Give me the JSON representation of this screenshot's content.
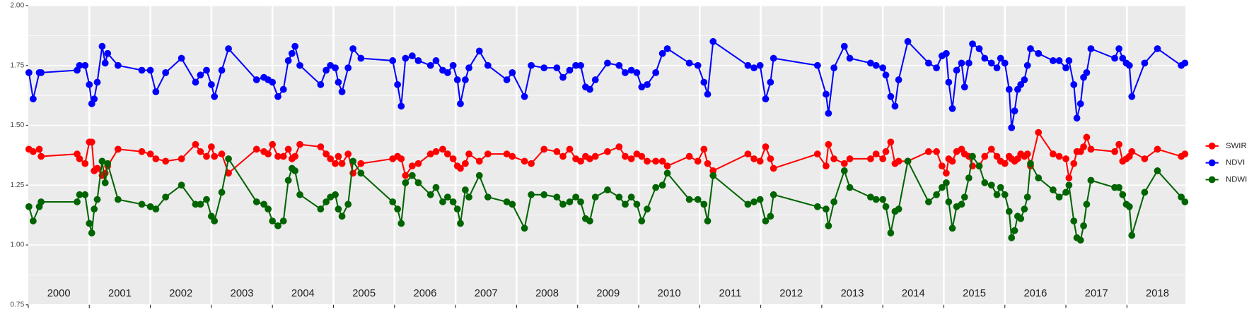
{
  "chart_data": {
    "type": "line",
    "x": [
      2000.01,
      2000.08,
      2000.18,
      2000.21,
      2000.8,
      2000.84,
      2000.93,
      2001.0,
      2001.04,
      2001.08,
      2001.13,
      2001.21,
      2001.26,
      2001.3,
      2001.47,
      2001.86,
      2002.0,
      2002.09,
      2002.25,
      2002.51,
      2002.74,
      2002.82,
      2002.92,
      2003.0,
      2003.05,
      2003.17,
      2003.28,
      2003.74,
      2003.86,
      2003.93,
      2004.0,
      2004.09,
      2004.18,
      2004.26,
      2004.32,
      2004.37,
      2004.45,
      2004.79,
      2004.88,
      2004.95,
      2005.03,
      2005.08,
      2005.14,
      2005.24,
      2005.32,
      2005.45,
      2005.97,
      2006.05,
      2006.11,
      2006.18,
      2006.29,
      2006.39,
      2006.59,
      2006.68,
      2006.79,
      2006.87,
      2006.96,
      2007.03,
      2007.08,
      2007.16,
      2007.22,
      2007.39,
      2007.53,
      2007.84,
      2007.93,
      2008.13,
      2008.24,
      2008.45,
      2008.66,
      2008.76,
      2008.87,
      2008.97,
      2009.05,
      2009.13,
      2009.2,
      2009.29,
      2009.49,
      2009.68,
      2009.78,
      2009.88,
      2009.97,
      2010.05,
      2010.14,
      2010.28,
      2010.39,
      2010.47,
      2010.83,
      2010.97,
      2011.07,
      2011.13,
      2011.22,
      2011.79,
      2011.89,
      2011.99,
      2012.08,
      2012.16,
      2012.21,
      2012.93,
      2013.07,
      2013.11,
      2013.2,
      2013.37,
      2013.46,
      2013.8,
      2013.89,
      2014.0,
      2014.05,
      2014.13,
      2014.2,
      2014.26,
      2014.41,
      2014.75,
      2014.88,
      2014.97,
      2015.04,
      2015.08,
      2015.14,
      2015.21,
      2015.29,
      2015.34,
      2015.41,
      2015.47,
      2015.58,
      2015.67,
      2015.78,
      2015.87,
      2015.93,
      2016.0,
      2016.07,
      2016.11,
      2016.16,
      2016.21,
      2016.26,
      2016.32,
      2016.37,
      2016.42,
      2016.55,
      2016.79,
      2016.89,
      2017.0,
      2017.05,
      2017.13,
      2017.18,
      2017.24,
      2017.29,
      2017.34,
      2017.41,
      2017.8,
      2017.87,
      2017.93,
      2017.99,
      2018.04,
      2018.08,
      2018.29,
      2018.5,
      2018.89,
      2018.95
    ],
    "series": [
      {
        "name": "SWIR",
        "color": "#ff0000",
        "values": [
          1.4,
          1.39,
          1.4,
          1.37,
          1.38,
          1.36,
          1.34,
          1.43,
          1.43,
          1.31,
          1.32,
          1.29,
          1.3,
          1.33,
          1.4,
          1.39,
          1.38,
          1.36,
          1.35,
          1.36,
          1.42,
          1.39,
          1.37,
          1.41,
          1.37,
          1.38,
          1.3,
          1.4,
          1.39,
          1.38,
          1.42,
          1.37,
          1.37,
          1.4,
          1.36,
          1.37,
          1.42,
          1.41,
          1.38,
          1.36,
          1.34,
          1.37,
          1.34,
          1.38,
          1.3,
          1.34,
          1.36,
          1.37,
          1.36,
          1.29,
          1.33,
          1.34,
          1.38,
          1.39,
          1.4,
          1.38,
          1.36,
          1.33,
          1.32,
          1.34,
          1.38,
          1.35,
          1.38,
          1.38,
          1.37,
          1.35,
          1.34,
          1.4,
          1.39,
          1.37,
          1.4,
          1.36,
          1.35,
          1.37,
          1.36,
          1.37,
          1.39,
          1.41,
          1.37,
          1.36,
          1.38,
          1.37,
          1.35,
          1.35,
          1.35,
          1.33,
          1.37,
          1.35,
          1.4,
          1.34,
          1.31,
          1.38,
          1.36,
          1.35,
          1.41,
          1.36,
          1.32,
          1.38,
          1.33,
          1.42,
          1.36,
          1.34,
          1.36,
          1.36,
          1.38,
          1.36,
          1.39,
          1.43,
          1.34,
          1.35,
          1.35,
          1.39,
          1.39,
          1.33,
          1.3,
          1.36,
          1.35,
          1.39,
          1.4,
          1.38,
          1.37,
          1.33,
          1.33,
          1.37,
          1.4,
          1.37,
          1.35,
          1.34,
          1.37,
          1.36,
          1.35,
          1.36,
          1.38,
          1.37,
          1.38,
          1.33,
          1.47,
          1.38,
          1.37,
          1.36,
          1.28,
          1.34,
          1.39,
          1.39,
          1.41,
          1.45,
          1.4,
          1.39,
          1.42,
          1.35,
          1.36,
          1.37,
          1.39,
          1.36,
          1.4,
          1.37,
          1.38
        ]
      },
      {
        "name": "NDVI",
        "color": "#0000ff",
        "values": [
          1.72,
          1.61,
          1.72,
          1.72,
          1.73,
          1.75,
          1.75,
          1.67,
          1.59,
          1.61,
          1.68,
          1.83,
          1.76,
          1.8,
          1.75,
          1.73,
          1.73,
          1.64,
          1.72,
          1.78,
          1.68,
          1.71,
          1.73,
          1.67,
          1.62,
          1.73,
          1.82,
          1.69,
          1.7,
          1.69,
          1.68,
          1.62,
          1.65,
          1.77,
          1.8,
          1.83,
          1.75,
          1.67,
          1.73,
          1.75,
          1.74,
          1.68,
          1.64,
          1.74,
          1.82,
          1.78,
          1.77,
          1.67,
          1.58,
          1.78,
          1.79,
          1.77,
          1.75,
          1.77,
          1.73,
          1.72,
          1.75,
          1.69,
          1.59,
          1.69,
          1.74,
          1.81,
          1.75,
          1.69,
          1.72,
          1.62,
          1.75,
          1.74,
          1.74,
          1.7,
          1.73,
          1.75,
          1.75,
          1.66,
          1.65,
          1.69,
          1.76,
          1.75,
          1.72,
          1.73,
          1.72,
          1.66,
          1.67,
          1.72,
          1.8,
          1.82,
          1.76,
          1.75,
          1.68,
          1.63,
          1.85,
          1.75,
          1.74,
          1.75,
          1.61,
          1.68,
          1.78,
          1.75,
          1.63,
          1.55,
          1.74,
          1.83,
          1.78,
          1.76,
          1.75,
          1.74,
          1.71,
          1.62,
          1.58,
          1.69,
          1.85,
          1.76,
          1.74,
          1.79,
          1.8,
          1.68,
          1.57,
          1.73,
          1.76,
          1.66,
          1.76,
          1.84,
          1.82,
          1.78,
          1.76,
          1.74,
          1.78,
          1.76,
          1.65,
          1.49,
          1.56,
          1.65,
          1.67,
          1.69,
          1.75,
          1.82,
          1.8,
          1.77,
          1.77,
          1.74,
          1.77,
          1.67,
          1.53,
          1.59,
          1.7,
          1.72,
          1.82,
          1.78,
          1.82,
          1.78,
          1.76,
          1.75,
          1.62,
          1.76,
          1.82,
          1.75,
          1.76
        ]
      },
      {
        "name": "NDWI",
        "color": "#006400",
        "values": [
          1.16,
          1.1,
          1.16,
          1.18,
          1.18,
          1.21,
          1.21,
          1.09,
          1.05,
          1.15,
          1.19,
          1.35,
          1.26,
          1.34,
          1.19,
          1.17,
          1.16,
          1.15,
          1.2,
          1.25,
          1.17,
          1.17,
          1.19,
          1.12,
          1.1,
          1.22,
          1.36,
          1.18,
          1.17,
          1.15,
          1.1,
          1.08,
          1.1,
          1.27,
          1.32,
          1.31,
          1.21,
          1.15,
          1.18,
          1.2,
          1.21,
          1.15,
          1.12,
          1.17,
          1.35,
          1.3,
          1.18,
          1.15,
          1.09,
          1.26,
          1.29,
          1.26,
          1.21,
          1.24,
          1.18,
          1.2,
          1.18,
          1.15,
          1.09,
          1.23,
          1.2,
          1.29,
          1.2,
          1.18,
          1.17,
          1.07,
          1.21,
          1.21,
          1.2,
          1.17,
          1.18,
          1.2,
          1.18,
          1.11,
          1.1,
          1.2,
          1.23,
          1.2,
          1.17,
          1.2,
          1.17,
          1.1,
          1.15,
          1.24,
          1.25,
          1.3,
          1.19,
          1.19,
          1.17,
          1.1,
          1.29,
          1.17,
          1.18,
          1.19,
          1.1,
          1.12,
          1.21,
          1.16,
          1.15,
          1.08,
          1.18,
          1.31,
          1.24,
          1.2,
          1.19,
          1.19,
          1.16,
          1.05,
          1.14,
          1.15,
          1.35,
          1.18,
          1.21,
          1.24,
          1.26,
          1.18,
          1.07,
          1.16,
          1.17,
          1.2,
          1.28,
          1.37,
          1.33,
          1.26,
          1.25,
          1.21,
          1.24,
          1.21,
          1.14,
          1.03,
          1.06,
          1.12,
          1.11,
          1.15,
          1.2,
          1.34,
          1.28,
          1.23,
          1.2,
          1.22,
          1.25,
          1.1,
          1.03,
          1.02,
          1.08,
          1.17,
          1.27,
          1.24,
          1.24,
          1.21,
          1.17,
          1.16,
          1.04,
          1.22,
          1.31,
          1.2,
          1.18
        ]
      }
    ],
    "xlim": [
      2000,
      2018.96
    ],
    "xticks": [
      {
        "value": 2000,
        "label": "2000"
      },
      {
        "value": 2001,
        "label": "2001"
      },
      {
        "value": 2002,
        "label": "2002"
      },
      {
        "value": 2003,
        "label": "2003"
      },
      {
        "value": 2004,
        "label": "2004"
      },
      {
        "value": 2005,
        "label": "2005"
      },
      {
        "value": 2006,
        "label": "2006"
      },
      {
        "value": 2007,
        "label": "2007"
      },
      {
        "value": 2008,
        "label": "2008"
      },
      {
        "value": 2009,
        "label": "2009"
      },
      {
        "value": 2010,
        "label": "2010"
      },
      {
        "value": 2011,
        "label": "2011"
      },
      {
        "value": 2012,
        "label": "2012"
      },
      {
        "value": 2013,
        "label": "2013"
      },
      {
        "value": 2014,
        "label": "2014"
      },
      {
        "value": 2015,
        "label": "2015"
      },
      {
        "value": 2016,
        "label": "2016"
      },
      {
        "value": 2017,
        "label": "2017"
      },
      {
        "value": 2018,
        "label": "2018"
      }
    ],
    "ylim": [
      0.75,
      2.0
    ],
    "yticks": [
      0.75,
      {
        "value": 1.0,
        "label": "1.00"
      },
      1.25,
      {
        "value": 1.5,
        "label": "1.50"
      },
      1.75,
      {
        "value": 2.0,
        "label": "2.00"
      }
    ],
    "grid": true,
    "legend": "right"
  }
}
